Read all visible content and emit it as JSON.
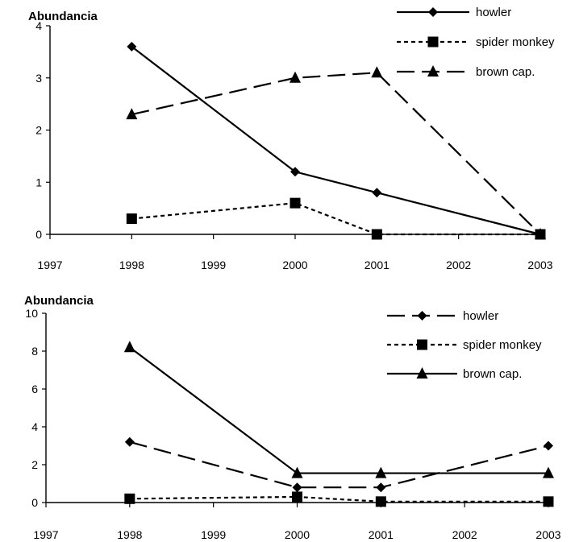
{
  "chart_data": [
    {
      "type": "line",
      "title": "",
      "ylabel": "Abundancia",
      "xlabel": "",
      "x_ticks": [
        "1997",
        "1998",
        "1999",
        "2000",
        "2001",
        "2002",
        "2003"
      ],
      "xlim": [
        1997,
        2003
      ],
      "ylim": [
        0,
        4
      ],
      "y_ticks": [
        0,
        1,
        2,
        3,
        4
      ],
      "grid": false,
      "legend": "top-right",
      "series": [
        {
          "name": "howler",
          "style": "solid",
          "marker": "diamond",
          "x": [
            1998,
            2000,
            2001,
            2003
          ],
          "y": [
            3.6,
            1.2,
            0.8,
            0.0
          ]
        },
        {
          "name": "spider monkey",
          "style": "dotted",
          "marker": "square",
          "x": [
            1998,
            2000,
            2001,
            2003
          ],
          "y": [
            0.3,
            0.6,
            0.0,
            0.0
          ]
        },
        {
          "name": "brown cap.",
          "style": "dashed",
          "marker": "triangle",
          "x": [
            1998,
            2000,
            2001,
            2003
          ],
          "y": [
            2.3,
            3.0,
            3.1,
            0.0
          ]
        }
      ]
    },
    {
      "type": "line",
      "title": "",
      "ylabel": "Abundancia",
      "xlabel": "",
      "x_ticks": [
        "1997",
        "1998",
        "1999",
        "2000",
        "2001",
        "2002",
        "2003"
      ],
      "xlim": [
        1997,
        2003
      ],
      "ylim": [
        0,
        10
      ],
      "y_ticks": [
        0,
        2,
        4,
        6,
        8,
        10
      ],
      "grid": false,
      "legend": "top-right",
      "series": [
        {
          "name": "howler",
          "style": "dashed",
          "marker": "diamond",
          "x": [
            1998,
            2000,
            2001,
            2003
          ],
          "y": [
            3.2,
            0.8,
            0.8,
            3.0
          ]
        },
        {
          "name": "spider monkey",
          "style": "dotted",
          "marker": "square",
          "x": [
            1998,
            2000,
            2001,
            2003
          ],
          "y": [
            0.2,
            0.3,
            0.05,
            0.05
          ]
        },
        {
          "name": "brown cap.",
          "style": "solid",
          "marker": "triangle",
          "x": [
            1998,
            2000,
            2001,
            2003
          ],
          "y": [
            8.2,
            1.55,
            1.55,
            1.55
          ]
        }
      ]
    }
  ]
}
